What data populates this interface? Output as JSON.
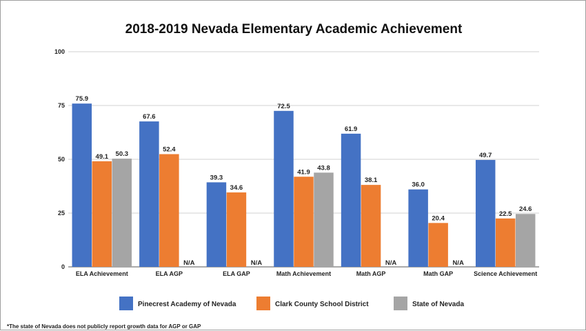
{
  "chart_data": {
    "type": "bar",
    "title": "2018-2019 Nevada Elementary Academic Achievement",
    "categories": [
      "ELA Achievement",
      "ELA AGP",
      "ELA GAP",
      "Math Achievement",
      "Math AGP",
      "Math GAP",
      "Science Achievement"
    ],
    "series": [
      {
        "name": "Pinecrest Academy of Nevada",
        "color": "#4472c4",
        "values": [
          75.9,
          67.6,
          39.3,
          72.5,
          61.9,
          36.0,
          49.7
        ]
      },
      {
        "name": "Clark County School District",
        "color": "#ed7d31",
        "values": [
          49.1,
          52.4,
          34.6,
          41.9,
          38.1,
          20.4,
          22.5
        ]
      },
      {
        "name": "State of Nevada",
        "color": "#a5a5a5",
        "values": [
          50.3,
          null,
          null,
          43.8,
          null,
          null,
          24.6
        ]
      }
    ],
    "missing_label": "N/A",
    "ylim": [
      0,
      100
    ],
    "yticks": [
      0,
      25,
      50,
      75,
      100
    ],
    "grid": true,
    "legend": "bottom",
    "xlabel": "",
    "ylabel": "",
    "footnote": "*The state of Nevada does not publicly report growth data for AGP or GAP"
  }
}
